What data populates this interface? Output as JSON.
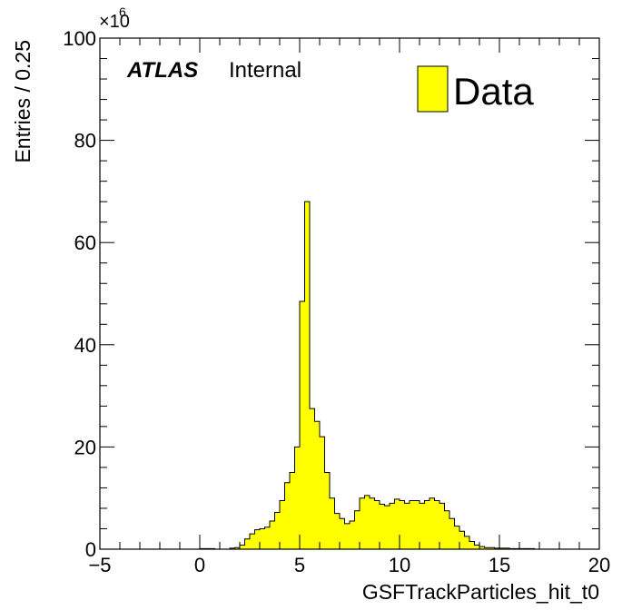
{
  "chart_data": {
    "type": "bar",
    "histogram_style": "step-filled",
    "xlabel": "GSFTrackParticles_hit_t0",
    "ylabel": "Entries / 0.25",
    "y_multiplier_label": "×10",
    "y_multiplier_exponent": "6",
    "xlim": [
      -5,
      20
    ],
    "ylim": [
      0,
      100
    ],
    "x_ticks": [
      -5,
      0,
      5,
      10,
      15,
      20
    ],
    "x_tick_labels": [
      "−5",
      "0",
      "5",
      "10",
      "15",
      "20"
    ],
    "y_ticks": [
      0,
      20,
      40,
      60,
      80,
      100
    ],
    "y_tick_labels": [
      "0",
      "20",
      "40",
      "60",
      "80",
      "100"
    ],
    "bin_width": 0.25,
    "fill_color": "#ffff00",
    "line_color": "#000000",
    "legend": {
      "position": "top-right",
      "entries": [
        "Data"
      ]
    },
    "annotations": {
      "atlas": "ATLAS",
      "status": "Internal"
    },
    "bins": [
      {
        "x": 0.0,
        "y": 0.1
      },
      {
        "x": 0.25,
        "y": 0.1
      },
      {
        "x": 0.5,
        "y": 0.1
      },
      {
        "x": 1.5,
        "y": 0.2
      },
      {
        "x": 1.75,
        "y": 0.3
      },
      {
        "x": 2.0,
        "y": 0.8
      },
      {
        "x": 2.25,
        "y": 2.0
      },
      {
        "x": 2.5,
        "y": 3.0
      },
      {
        "x": 2.75,
        "y": 3.8
      },
      {
        "x": 3.0,
        "y": 4.0
      },
      {
        "x": 3.25,
        "y": 4.3
      },
      {
        "x": 3.5,
        "y": 5.5
      },
      {
        "x": 3.75,
        "y": 7.2
      },
      {
        "x": 4.0,
        "y": 9.5
      },
      {
        "x": 4.25,
        "y": 13.0
      },
      {
        "x": 4.5,
        "y": 15.0
      },
      {
        "x": 4.75,
        "y": 20.0
      },
      {
        "x": 5.0,
        "y": 48.5
      },
      {
        "x": 5.25,
        "y": 68.0
      },
      {
        "x": 5.5,
        "y": 27.5
      },
      {
        "x": 5.75,
        "y": 25.0
      },
      {
        "x": 6.0,
        "y": 22.0
      },
      {
        "x": 6.25,
        "y": 15.0
      },
      {
        "x": 6.5,
        "y": 10.0
      },
      {
        "x": 6.75,
        "y": 7.0
      },
      {
        "x": 7.0,
        "y": 6.0
      },
      {
        "x": 7.25,
        "y": 5.0
      },
      {
        "x": 7.5,
        "y": 5.5
      },
      {
        "x": 7.75,
        "y": 7.5
      },
      {
        "x": 8.0,
        "y": 10.0
      },
      {
        "x": 8.25,
        "y": 10.5
      },
      {
        "x": 8.5,
        "y": 10.0
      },
      {
        "x": 8.75,
        "y": 9.5
      },
      {
        "x": 9.0,
        "y": 8.8
      },
      {
        "x": 9.25,
        "y": 8.5
      },
      {
        "x": 9.5,
        "y": 9.0
      },
      {
        "x": 9.75,
        "y": 9.8
      },
      {
        "x": 10.0,
        "y": 9.5
      },
      {
        "x": 10.25,
        "y": 9.0
      },
      {
        "x": 10.5,
        "y": 9.5
      },
      {
        "x": 10.75,
        "y": 9.5
      },
      {
        "x": 11.0,
        "y": 9.0
      },
      {
        "x": 11.25,
        "y": 9.5
      },
      {
        "x": 11.5,
        "y": 10.0
      },
      {
        "x": 11.75,
        "y": 9.5
      },
      {
        "x": 12.0,
        "y": 9.0
      },
      {
        "x": 12.25,
        "y": 7.5
      },
      {
        "x": 12.5,
        "y": 6.0
      },
      {
        "x": 12.75,
        "y": 4.5
      },
      {
        "x": 13.0,
        "y": 3.5
      },
      {
        "x": 13.25,
        "y": 2.5
      },
      {
        "x": 13.5,
        "y": 1.5
      },
      {
        "x": 13.75,
        "y": 0.8
      },
      {
        "x": 14.0,
        "y": 0.5
      },
      {
        "x": 14.25,
        "y": 0.3
      },
      {
        "x": 14.5,
        "y": 0.3
      },
      {
        "x": 14.75,
        "y": 0.2
      },
      {
        "x": 15.0,
        "y": 0.2
      },
      {
        "x": 15.25,
        "y": 0.2
      },
      {
        "x": 15.5,
        "y": 0.1
      },
      {
        "x": 15.75,
        "y": 0.1
      },
      {
        "x": 16.0,
        "y": 0.1
      },
      {
        "x": 16.25,
        "y": 0.1
      },
      {
        "x": 16.5,
        "y": 0.1
      }
    ]
  }
}
